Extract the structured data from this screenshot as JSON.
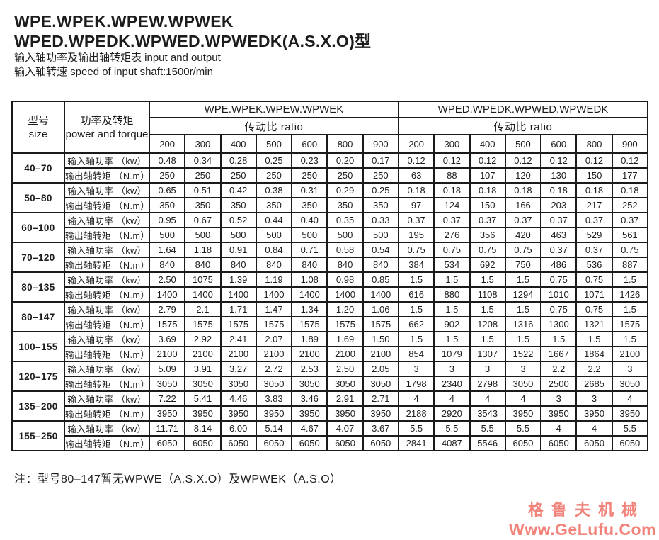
{
  "header": {
    "title_line1": "WPE.WPEK.WPEW.WPWEK",
    "title_line2": "WPED.WPEDK.WPWED.WPWEDK(A.S.X.O)型",
    "subtitle_io": "输入轴功率及输出轴转矩表  input and output",
    "subtitle_speed": "输入轴转速 speed of input shaft:1500r/min"
  },
  "table": {
    "size_header_zh": "型号",
    "size_header_en": "size",
    "power_header_zh": "功率及转矩",
    "power_header_en": "power and torque",
    "group1": "WPE.WPEK.WPEW.WPWEK",
    "group2": "WPED.WPEDK.WPWED.WPWEDK",
    "ratio_label": "传动比  ratio",
    "ratios": [
      "200",
      "300",
      "400",
      "500",
      "600",
      "800",
      "900"
    ],
    "row_label_power": "输入轴功率 （kw）",
    "row_label_torque": "输出轴转矩 （N.m）",
    "rows": [
      {
        "size": "40–70",
        "power": [
          "0.48",
          "0.34",
          "0.28",
          "0.25",
          "0.23",
          "0.20",
          "0.17",
          "0.12",
          "0.12",
          "0.12",
          "0.12",
          "0.12",
          "0.12",
          "0.12"
        ],
        "torque": [
          "250",
          "250",
          "250",
          "250",
          "250",
          "250",
          "250",
          "63",
          "88",
          "107",
          "120",
          "130",
          "150",
          "177"
        ]
      },
      {
        "size": "50–80",
        "power": [
          "0.65",
          "0.51",
          "0.42",
          "0.38",
          "0.31",
          "0.29",
          "0.25",
          "0.18",
          "0.18",
          "0.18",
          "0.18",
          "0.18",
          "0.18",
          "0.18"
        ],
        "torque": [
          "350",
          "350",
          "350",
          "350",
          "350",
          "350",
          "350",
          "97",
          "124",
          "150",
          "166",
          "203",
          "217",
          "252"
        ]
      },
      {
        "size": "60–100",
        "power": [
          "0.95",
          "0.67",
          "0.52",
          "0.44",
          "0.40",
          "0.35",
          "0.33",
          "0.37",
          "0.37",
          "0.37",
          "0.37",
          "0.37",
          "0.37",
          "0.37"
        ],
        "torque": [
          "500",
          "500",
          "500",
          "500",
          "500",
          "500",
          "500",
          "195",
          "276",
          "356",
          "420",
          "463",
          "529",
          "561"
        ]
      },
      {
        "size": "70–120",
        "power": [
          "1.64",
          "1.18",
          "0.91",
          "0.84",
          "0.71",
          "0.58",
          "0.54",
          "0.75",
          "0.75",
          "0.75",
          "0.75",
          "0.37",
          "0.37",
          "0.75"
        ],
        "torque": [
          "840",
          "840",
          "840",
          "840",
          "840",
          "840",
          "840",
          "384",
          "534",
          "692",
          "750",
          "486",
          "536",
          "887"
        ]
      },
      {
        "size": "80–135",
        "power": [
          "2.50",
          "1075",
          "1.39",
          "1.19",
          "1.08",
          "0.98",
          "0.85",
          "1.5",
          "1.5",
          "1.5",
          "1.5",
          "0.75",
          "0.75",
          "1.5"
        ],
        "torque": [
          "1400",
          "1400",
          "1400",
          "1400",
          "1400",
          "1400",
          "1400",
          "616",
          "880",
          "1108",
          "1294",
          "1010",
          "1071",
          "1426"
        ]
      },
      {
        "size": "80–147",
        "power": [
          "2.79",
          "2.1",
          "1.71",
          "1.47",
          "1.34",
          "1.20",
          "1.06",
          "1.5",
          "1.5",
          "1.5",
          "1.5",
          "0.75",
          "0.75",
          "1.5"
        ],
        "torque": [
          "1575",
          "1575",
          "1575",
          "1575",
          "1575",
          "1575",
          "1575",
          "662",
          "902",
          "1208",
          "1316",
          "1300",
          "1321",
          "1575"
        ]
      },
      {
        "size": "100–155",
        "power": [
          "3.69",
          "2.92",
          "2.41",
          "2.07",
          "1.89",
          "1.69",
          "1.50",
          "1.5",
          "1.5",
          "1.5",
          "1.5",
          "1.5",
          "1.5",
          "1.5"
        ],
        "torque": [
          "2100",
          "2100",
          "2100",
          "2100",
          "2100",
          "2100",
          "2100",
          "854",
          "1079",
          "1307",
          "1522",
          "1667",
          "1864",
          "2100"
        ]
      },
      {
        "size": "120–175",
        "power": [
          "5.09",
          "3.91",
          "3.27",
          "2.72",
          "2.53",
          "2.50",
          "2.05",
          "3",
          "3",
          "3",
          "3",
          "2.2",
          "2.2",
          "3"
        ],
        "torque": [
          "3050",
          "3050",
          "3050",
          "3050",
          "3050",
          "3050",
          "3050",
          "1798",
          "2340",
          "2798",
          "3050",
          "2500",
          "2685",
          "3050"
        ]
      },
      {
        "size": "135–200",
        "power": [
          "7.22",
          "5.41",
          "4.46",
          "3.83",
          "3.46",
          "2.91",
          "2.71",
          "4",
          "4",
          "4",
          "4",
          "3",
          "3",
          "4"
        ],
        "torque": [
          "3950",
          "3950",
          "3950",
          "3950",
          "3950",
          "3950",
          "3950",
          "2188",
          "2920",
          "3543",
          "3950",
          "3950",
          "3950",
          "3950"
        ]
      },
      {
        "size": "155–250",
        "power": [
          "11.71",
          "8.14",
          "6.00",
          "5.14",
          "4.67",
          "4.07",
          "3.67",
          "5.5",
          "5.5",
          "5.5",
          "5.5",
          "4",
          "4",
          "5.5"
        ],
        "torque": [
          "6050",
          "6050",
          "6050",
          "6050",
          "6050",
          "6050",
          "6050",
          "2841",
          "4087",
          "5546",
          "6050",
          "6050",
          "6050",
          "6050"
        ]
      }
    ]
  },
  "footnote": "注：型号80–147暂无WPWE（A.S.X.O）及WPWEK（A.S.O）",
  "watermark": {
    "line1": "格鲁夫机械",
    "line2": "Www.GeLufu.Com",
    "color": "#f2837b"
  }
}
